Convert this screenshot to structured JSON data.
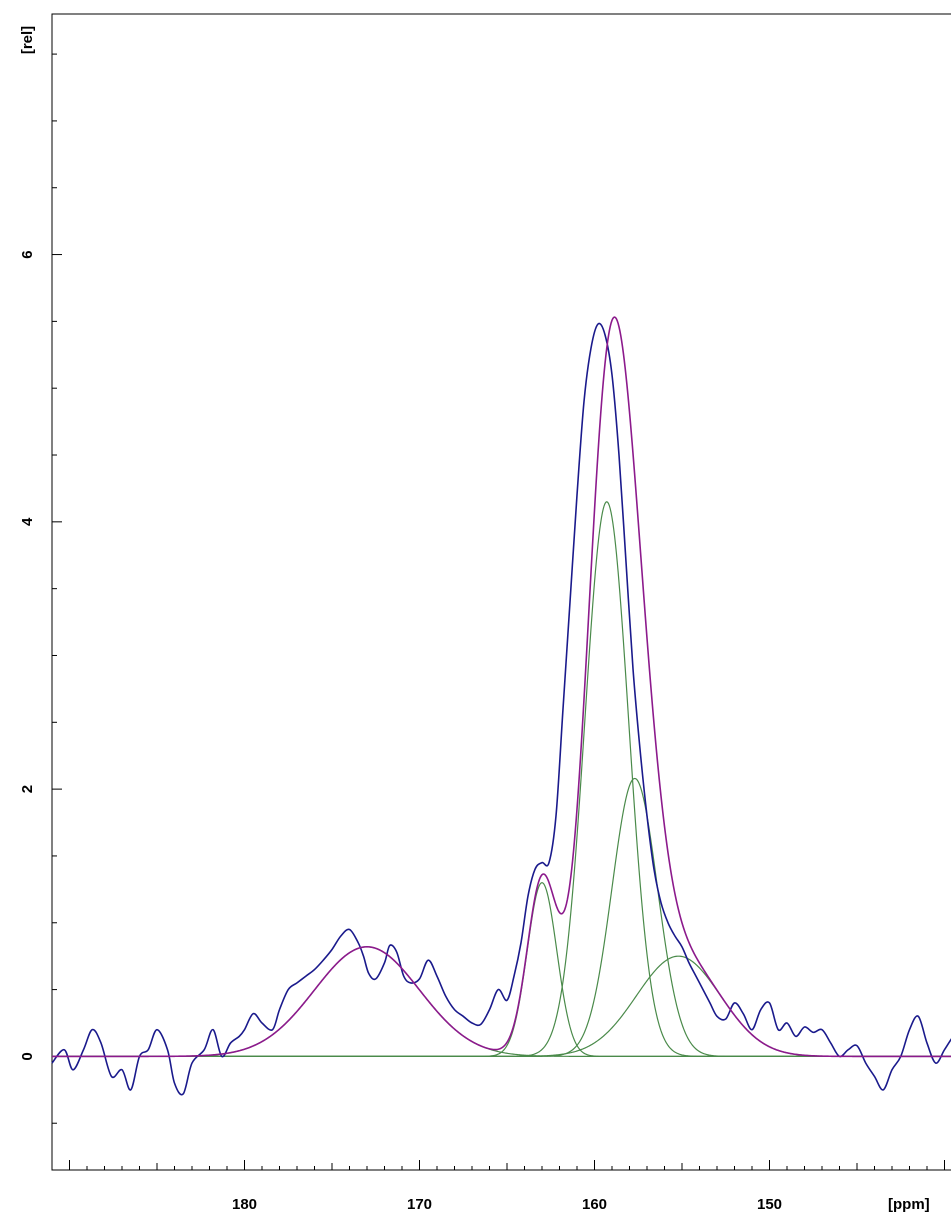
{
  "chart_data": {
    "type": "line",
    "xlabel": "[ppm]",
    "ylabel": "[rel]",
    "xlim": [
      191,
      139
    ],
    "ylim": [
      -0.85,
      7.8
    ],
    "x_reversed": true,
    "x_ticks": [
      180,
      170,
      160,
      150
    ],
    "y_ticks": [
      0,
      2,
      4,
      6
    ],
    "grid": false,
    "legend": "none",
    "colors": {
      "measured": "#1a1a8c",
      "fit_sum": "#8c1a8c",
      "components": "#4a8a4a",
      "axes": "#000000"
    },
    "components": [
      {
        "center": 173.0,
        "height": 0.82,
        "width": 3.0
      },
      {
        "center": 163.0,
        "height": 1.3,
        "width": 0.85
      },
      {
        "center": 159.3,
        "height": 4.15,
        "width": 1.25
      },
      {
        "center": 157.7,
        "height": 2.08,
        "width": 1.3
      },
      {
        "center": 155.2,
        "height": 0.75,
        "width": 2.4
      }
    ],
    "series": [
      {
        "x": [
          191.0,
          190.3,
          189.8,
          189.2,
          188.7,
          188.2,
          187.6,
          187.0,
          186.5,
          186.0,
          185.5,
          185.0,
          184.4,
          184.0,
          183.5,
          183.0,
          182.3,
          181.8,
          181.3,
          180.8,
          180.3,
          180.0,
          179.5,
          179.0,
          178.4,
          178.0,
          177.5,
          177.0,
          176.5,
          176.0,
          175.5,
          175.0,
          174.5,
          174.0,
          173.5,
          173.2,
          172.9,
          172.5,
          172.0,
          171.7,
          171.3,
          170.9,
          170.5,
          170.0,
          169.5,
          169.0,
          168.5,
          168.0,
          167.5,
          167.0,
          166.5,
          166.0,
          165.5,
          165.0,
          164.6,
          164.2,
          163.8,
          163.4,
          163.0,
          162.6,
          162.2,
          161.8,
          161.4,
          161.0,
          160.6,
          160.2,
          159.8,
          159.4,
          159.0,
          158.6,
          158.2,
          157.8,
          157.4,
          157.0,
          156.6,
          156.2,
          155.8,
          155.4,
          155.0,
          154.6,
          154.2,
          153.8,
          153.4,
          153.0,
          152.5,
          152.0,
          151.5,
          151.0,
          150.5,
          150.0,
          149.5,
          149.0,
          148.5,
          148.0,
          147.5,
          147.0,
          146.5,
          146.0,
          145.5,
          145.0,
          144.5,
          144.0,
          143.5,
          143.0,
          142.5,
          142.0,
          141.5,
          141.0,
          140.5,
          140.0,
          139.5,
          139.0
        ],
        "y": [
          -0.05,
          0.05,
          -0.1,
          0.05,
          0.2,
          0.1,
          -0.15,
          -0.1,
          -0.25,
          0.0,
          0.05,
          0.2,
          0.05,
          -0.2,
          -0.28,
          -0.05,
          0.05,
          0.2,
          0.0,
          0.1,
          0.15,
          0.2,
          0.32,
          0.25,
          0.2,
          0.35,
          0.5,
          0.55,
          0.6,
          0.65,
          0.72,
          0.8,
          0.9,
          0.95,
          0.85,
          0.75,
          0.62,
          0.58,
          0.7,
          0.83,
          0.78,
          0.6,
          0.55,
          0.58,
          0.72,
          0.6,
          0.45,
          0.35,
          0.3,
          0.25,
          0.24,
          0.35,
          0.5,
          0.42,
          0.6,
          0.85,
          1.2,
          1.4,
          1.45,
          1.45,
          1.8,
          2.6,
          3.4,
          4.2,
          4.9,
          5.3,
          5.48,
          5.4,
          5.1,
          4.5,
          3.7,
          2.9,
          2.3,
          1.8,
          1.4,
          1.15,
          1.0,
          0.9,
          0.82,
          0.7,
          0.6,
          0.5,
          0.4,
          0.3,
          0.28,
          0.4,
          0.32,
          0.2,
          0.35,
          0.4,
          0.2,
          0.25,
          0.15,
          0.22,
          0.18,
          0.2,
          0.1,
          0.0,
          0.05,
          0.08,
          -0.05,
          -0.15,
          -0.25,
          -0.1,
          0.0,
          0.2,
          0.3,
          0.1,
          -0.05,
          0.05,
          0.15,
          0.22
        ]
      }
    ]
  }
}
